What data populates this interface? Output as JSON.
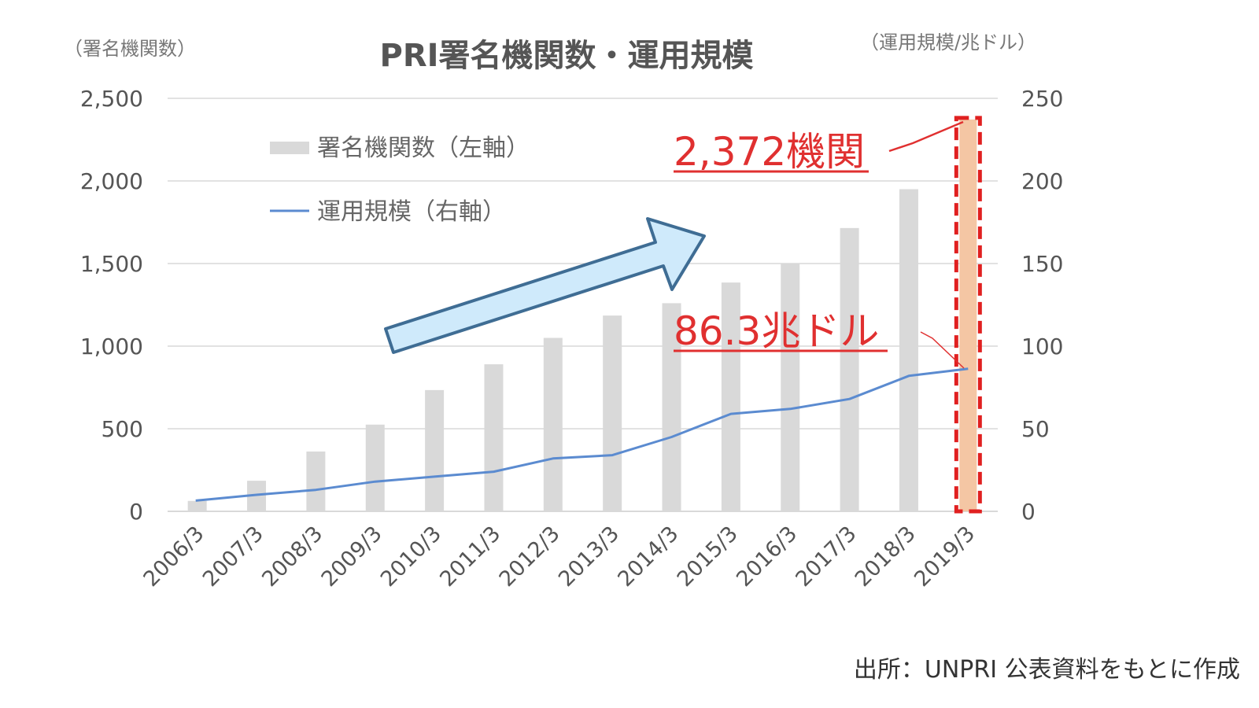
{
  "chart_data": {
    "type": "bar",
    "title": "PRI署名機関数・運用規模",
    "y_left_unit": "（署名機関数）",
    "y_right_unit": "（運用規模/兆ドル）",
    "categories": [
      "2006/3",
      "2007/3",
      "2008/3",
      "2009/3",
      "2010/3",
      "2011/3",
      "2012/3",
      "2013/3",
      "2014/3",
      "2015/3",
      "2016/3",
      "2017/3",
      "2018/3",
      "2019/3"
    ],
    "series": [
      {
        "name": "署名機関数（左軸）",
        "type": "bar",
        "axis": "left",
        "values": [
          63,
          185,
          362,
          525,
          734,
          890,
          1050,
          1185,
          1260,
          1385,
          1500,
          1715,
          1950,
          2372
        ]
      },
      {
        "name": "運用規模（右軸）",
        "type": "line",
        "axis": "right",
        "values": [
          6.5,
          10,
          13,
          18,
          21,
          24,
          32,
          34,
          45,
          59,
          62,
          68,
          82,
          86.3
        ]
      }
    ],
    "y_left": {
      "range": [
        0,
        2500
      ],
      "ticks": [
        "0",
        "500",
        "1,000",
        "1,500",
        "2,000",
        "2,500"
      ]
    },
    "y_right": {
      "range": [
        0,
        250
      ],
      "ticks": [
        "0",
        "50",
        "100",
        "150",
        "200",
        "250"
      ]
    },
    "grid": true,
    "legend_position": "top-left",
    "annotations": {
      "bar_callout": "2,372機関",
      "line_callout": "86.3兆ドル"
    },
    "colors": {
      "bar": "#d9d9d9",
      "line": "#5b8bd0",
      "highlight_bar": "#f4c6a4",
      "highlight_border": "#e02020",
      "callout": "#e03030",
      "arrow_fill": "#cfeafb",
      "arrow_stroke": "#3f6d94",
      "grid": "#d9d9d9",
      "text": "#555555"
    }
  },
  "source": "出所：UNPRI 公表資料をもとに作成"
}
